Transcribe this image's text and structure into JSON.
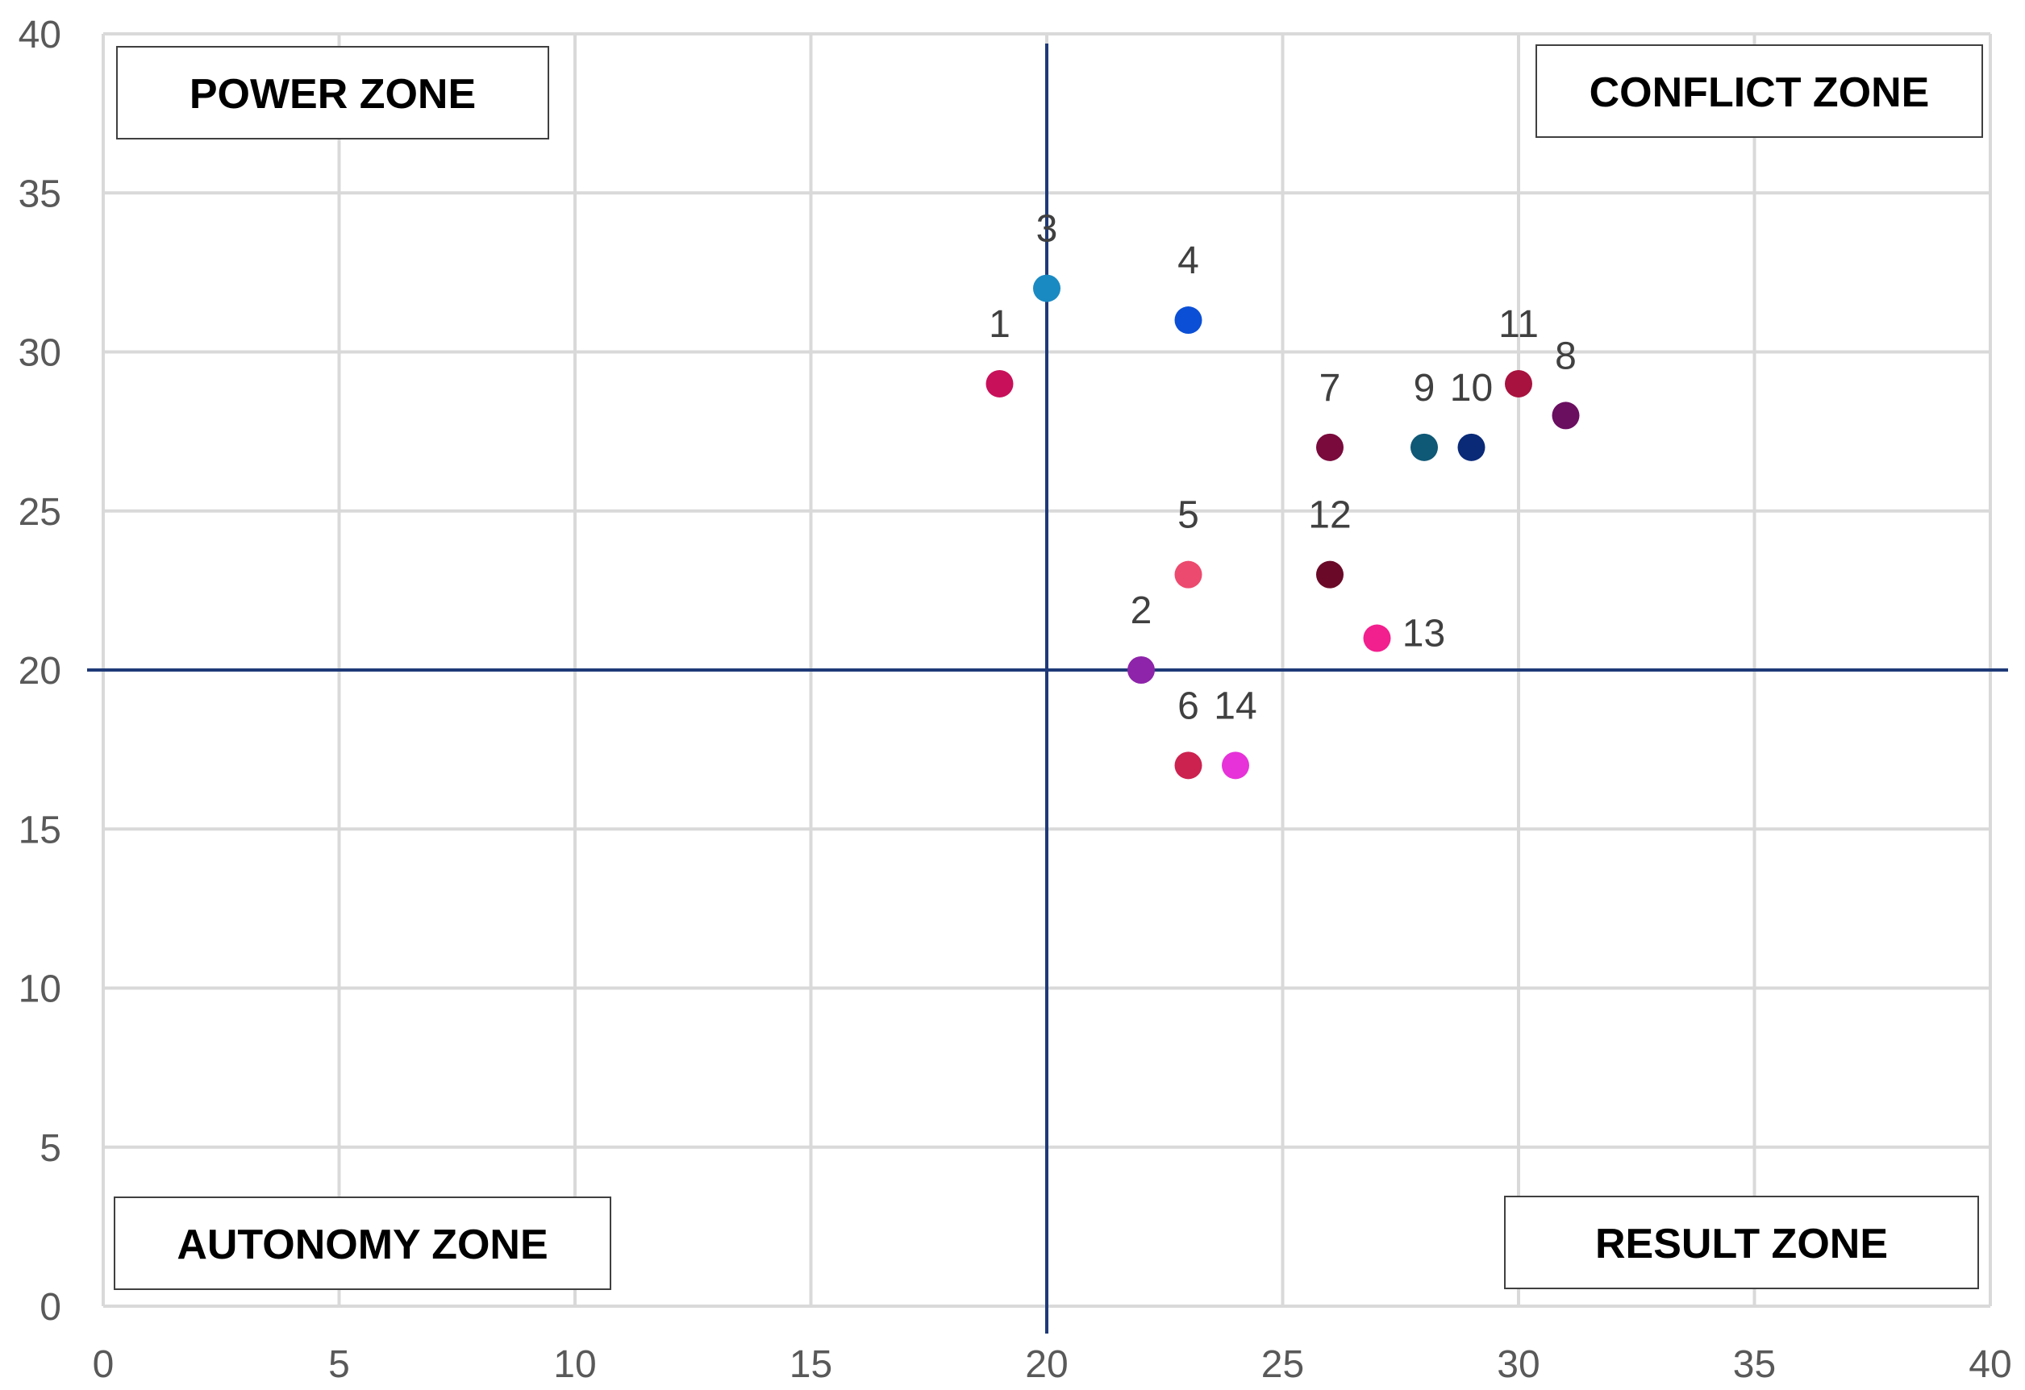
{
  "chart_data": {
    "type": "scatter",
    "title": "",
    "xlabel": "",
    "ylabel": "",
    "xlim": [
      0,
      40
    ],
    "ylim": [
      0,
      40
    ],
    "x_ticks": [
      "0",
      "5",
      "10",
      "15",
      "20",
      "25",
      "30",
      "35",
      "40"
    ],
    "y_ticks": [
      "0",
      "5",
      "10",
      "15",
      "20",
      "25",
      "30",
      "35",
      "40"
    ],
    "grid": true,
    "divider_lines": {
      "x": 20,
      "y": 20
    },
    "zones": [
      {
        "id": "power",
        "label": "POWER ZONE",
        "position": "top-left"
      },
      {
        "id": "conflict",
        "label": "CONFLICT ZONE",
        "position": "top-right"
      },
      {
        "id": "autonomy",
        "label": "AUTONOMY ZONE",
        "position": "bottom-left"
      },
      {
        "id": "result",
        "label": "RESULT ZONE",
        "position": "bottom-right"
      }
    ],
    "points": [
      {
        "label": "1",
        "x": 19,
        "y": 29,
        "color": "#c8105a"
      },
      {
        "label": "2",
        "x": 22,
        "y": 20,
        "color": "#8e24aa"
      },
      {
        "label": "3",
        "x": 20,
        "y": 32,
        "color": "#1a8ac2"
      },
      {
        "label": "4",
        "x": 23,
        "y": 31,
        "color": "#0b4fd6"
      },
      {
        "label": "5",
        "x": 23,
        "y": 23,
        "color": "#ec4a6e"
      },
      {
        "label": "6",
        "x": 23,
        "y": 17,
        "color": "#cc2250"
      },
      {
        "label": "7",
        "x": 26,
        "y": 27,
        "color": "#7a0a3c"
      },
      {
        "label": "8",
        "x": 31,
        "y": 28,
        "color": "#6a0e60"
      },
      {
        "label": "9",
        "x": 28,
        "y": 27,
        "color": "#0f5876"
      },
      {
        "label": "10",
        "x": 29,
        "y": 27,
        "color": "#0a2a78"
      },
      {
        "label": "11",
        "x": 30,
        "y": 29,
        "color": "#a8123e"
      },
      {
        "label": "12",
        "x": 26,
        "y": 23,
        "color": "#6a0a28"
      },
      {
        "label": "13",
        "x": 27,
        "y": 21,
        "color": "#f21f8e"
      },
      {
        "label": "14",
        "x": 24,
        "y": 17,
        "color": "#e632d8"
      }
    ]
  },
  "colors": {
    "grid": "#d9d9d9",
    "divider": "#1f3a78",
    "tick_text": "#595959",
    "point_label": "#404040"
  }
}
